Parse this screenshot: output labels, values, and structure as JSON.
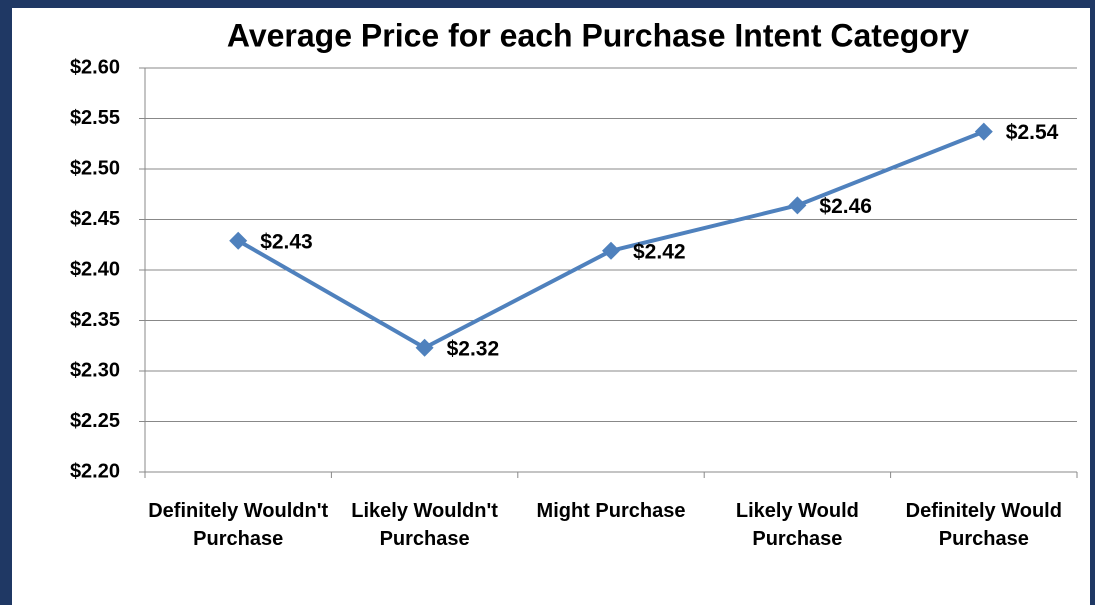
{
  "chart_data": {
    "type": "line",
    "title": "Average Price for each Purchase Intent Category",
    "categories": [
      "Definitely Wouldn't Purchase",
      "Likely Wouldn't Purchase",
      "Might Purchase",
      "Likely Would Purchase",
      "Definitely Would Purchase"
    ],
    "series": [
      {
        "name": "Average Price",
        "color": "#4f81bd",
        "values": [
          2.429,
          2.323,
          2.419,
          2.464,
          2.537
        ],
        "value_labels": [
          "$2.43",
          "$2.32",
          "$2.42",
          "$2.46",
          "$2.54"
        ]
      }
    ],
    "ylim": [
      2.2,
      2.6
    ],
    "yticks": [
      {
        "value": 2.2,
        "label": "$2.20"
      },
      {
        "value": 2.25,
        "label": "$2.25"
      },
      {
        "value": 2.3,
        "label": "$2.30"
      },
      {
        "value": 2.35,
        "label": "$2.35"
      },
      {
        "value": 2.4,
        "label": "$2.40"
      },
      {
        "value": 2.45,
        "label": "$2.45"
      },
      {
        "value": 2.5,
        "label": "$2.50"
      },
      {
        "value": 2.55,
        "label": "$2.55"
      },
      {
        "value": 2.6,
        "label": "$2.60"
      }
    ],
    "grid": true
  }
}
